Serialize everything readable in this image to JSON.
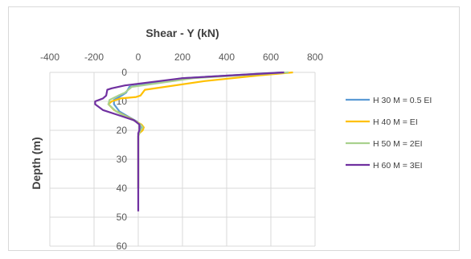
{
  "chart_data": {
    "type": "line",
    "title": "Shear - Y (kN)",
    "xlabel": "",
    "ylabel": "Depth (m)",
    "xlim": [
      -400,
      800
    ],
    "ylim": [
      0,
      60
    ],
    "y_inverted": true,
    "x_axis_position": "top",
    "x_ticks": [
      "-400",
      "-200",
      "0",
      "200",
      "400",
      "600",
      "800"
    ],
    "y_ticks": [
      "0",
      "10",
      "20",
      "30",
      "40",
      "50",
      "60"
    ],
    "grid": true,
    "legend_position": "right",
    "series": [
      {
        "name": "H 30 M = 0.5 EI",
        "color": "#5b9bd5",
        "points": [
          [
            650,
            0
          ],
          [
            200,
            2
          ],
          [
            -40,
            5
          ],
          [
            -55,
            7
          ],
          [
            -75,
            8
          ],
          [
            -110,
            9.5
          ],
          [
            -110,
            11
          ],
          [
            -85,
            13.5
          ],
          [
            -40,
            15.5
          ],
          [
            -5,
            17
          ],
          [
            5,
            18
          ],
          [
            15,
            19
          ],
          [
            10,
            20
          ],
          [
            0,
            22
          ],
          [
            0,
            30
          ],
          [
            0,
            40
          ]
        ]
      },
      {
        "name": "H 40 M = EI",
        "color": "#ffc000",
        "points": [
          [
            700,
            0
          ],
          [
            550,
            1
          ],
          [
            300,
            3
          ],
          [
            30,
            6
          ],
          [
            10,
            8
          ],
          [
            -10,
            8.5
          ],
          [
            -80,
            9
          ],
          [
            -120,
            10
          ],
          [
            -135,
            11
          ],
          [
            -110,
            13
          ],
          [
            -60,
            15
          ],
          [
            -20,
            16.5
          ],
          [
            15,
            18
          ],
          [
            25,
            19
          ],
          [
            20,
            20
          ],
          [
            5,
            21
          ],
          [
            0,
            22
          ],
          [
            0,
            30
          ],
          [
            0,
            40
          ]
        ]
      },
      {
        "name": "H 50 M = 2EI",
        "color": "#a9d18e",
        "points": [
          [
            680,
            0
          ],
          [
            250,
            2
          ],
          [
            -30,
            5
          ],
          [
            -60,
            7
          ],
          [
            -90,
            8
          ],
          [
            -130,
            9.5
          ],
          [
            -135,
            11
          ],
          [
            -100,
            13.5
          ],
          [
            -50,
            15.5
          ],
          [
            -10,
            17
          ],
          [
            10,
            18
          ],
          [
            20,
            19
          ],
          [
            10,
            20
          ],
          [
            0,
            22
          ],
          [
            0,
            30
          ],
          [
            0,
            40
          ]
        ]
      },
      {
        "name": "H 60 M = 3EI",
        "color": "#7030a0",
        "points": [
          [
            660,
            0
          ],
          [
            200,
            2
          ],
          [
            -60,
            4.5
          ],
          [
            -120,
            5.5
          ],
          [
            -140,
            6
          ],
          [
            -145,
            8
          ],
          [
            -160,
            9
          ],
          [
            -195,
            10
          ],
          [
            -195,
            11
          ],
          [
            -160,
            13
          ],
          [
            -80,
            15
          ],
          [
            -20,
            16.5
          ],
          [
            5,
            18
          ],
          [
            5,
            20
          ],
          [
            0,
            21
          ],
          [
            0,
            30
          ],
          [
            0,
            40
          ],
          [
            0,
            48
          ]
        ]
      }
    ]
  }
}
